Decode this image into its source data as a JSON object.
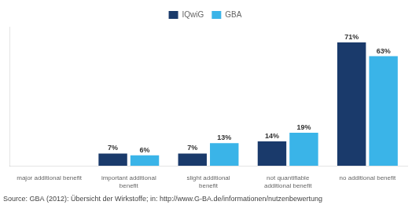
{
  "chart_data": {
    "type": "bar",
    "categories": [
      "major additional benefit",
      "important additional\nbenefit",
      "slight additional\nbenefit",
      "not quantifiable\nadditional benefit",
      "no additional benefit"
    ],
    "series": [
      {
        "name": "IQwiG",
        "color": "#1a3a6b",
        "values": [
          0,
          7,
          7,
          14,
          71
        ],
        "value_labels": [
          null,
          "7%",
          "7%",
          "14%",
          "71%"
        ]
      },
      {
        "name": "GBA",
        "color": "#3ab4e8",
        "values": [
          0,
          6,
          13,
          19,
          63
        ],
        "value_labels": [
          null,
          "6%",
          "13%",
          "19%",
          "63%"
        ]
      }
    ],
    "ylim": [
      0,
      80
    ],
    "grid": false,
    "legend": "top",
    "data_labels": true,
    "tick_labels": "x",
    "annotations": [
      "Source: GBA (2012): Übersicht der Wirkstoffe; in: http://www.G-BA.de/informationen/nutzenbewertung"
    ]
  }
}
